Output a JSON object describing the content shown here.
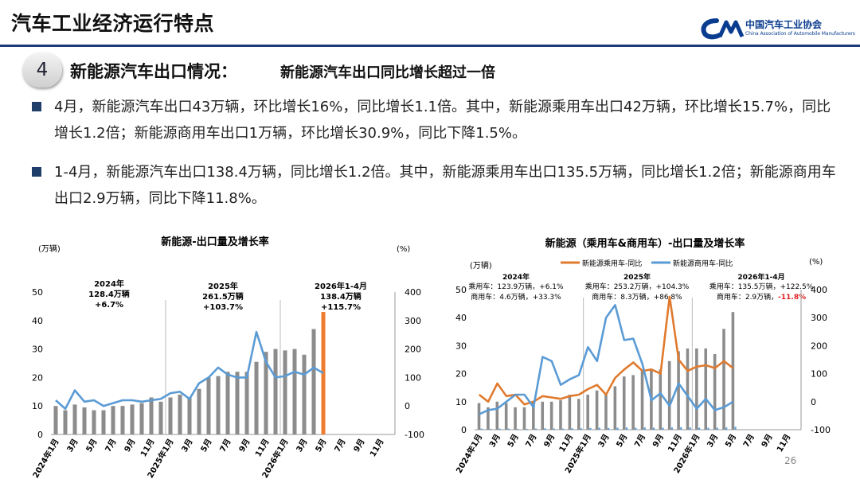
{
  "page": {
    "title": "汽车工业经济运行特点",
    "logo_cn": "中国汽车工业协会",
    "logo_en": "China Association of Automobile Manufacturers",
    "section_number": "4",
    "section_title": "新能源汽车出口情况：",
    "section_subtitle": "新能源汽车出口同比增长超过一倍",
    "para1": "4月，新能源汽车出口43万辆，环比增长16%，同比增长1.1倍。其中，新能源乘用车出口42万辆，环比增长15.7%，同比增长1.2倍；新能源商用车出口1万辆，环比增长30.9%，同比下降1.5%。",
    "para2": "1-4月，新能源汽车出口138.4万辆，同比增长1.2倍。其中，新能源乘用车出口135.5万辆，同比增长1.2倍；新能源商用车出口2.9万辆，同比下降11.8%。",
    "page_number": "26",
    "colors": {
      "header_line": "#1c3a78",
      "bar_gray": "#8c8c8c",
      "bar_highlight": "#ee7d31",
      "line_blue": "#5b9bd5",
      "line_orange": "#e07a2e",
      "negative_red": "#e02020"
    }
  },
  "chart_data": [
    {
      "type": "bar",
      "title": "新能源-出口量及增长率",
      "ylabel_left": "(万辆)",
      "ylabel_right": "(%)",
      "x_tick_labels": [
        "2024年1月",
        "3月",
        "5月",
        "7月",
        "9月",
        "11月",
        "2025年1月",
        "3月",
        "5月",
        "7月",
        "9月",
        "11月",
        "2026年1月",
        "3月",
        "5月",
        "7月",
        "9月",
        "11月"
      ],
      "ylim_left": [
        0,
        50
      ],
      "yticks_left": [
        0,
        10,
        20,
        30,
        40,
        50
      ],
      "ylim_right": [
        -100,
        400
      ],
      "yticks_right": [
        -100,
        0,
        100,
        200,
        300,
        400
      ],
      "annotations": [
        {
          "period": "2024年",
          "text1": "128.4万辆",
          "text2": "+6.7%"
        },
        {
          "period": "2025年",
          "text1": "261.5万辆",
          "text2": "+103.7%"
        },
        {
          "period": "2026年1-4月",
          "text1": "138.4万辆",
          "text2": "+115.7%"
        }
      ],
      "series": [
        {
          "kind": "bar",
          "values": [
            10,
            8.5,
            10.5,
            9.5,
            8.5,
            8.5,
            10,
            10,
            10.5,
            11,
            13,
            11.5,
            13,
            14,
            13,
            16,
            20,
            20.5,
            22,
            22,
            22,
            25.5,
            29,
            30,
            29.5,
            30,
            28,
            37,
            43
          ]
        },
        {
          "kind": "line",
          "values": [
            20,
            -10,
            55,
            15,
            20,
            0,
            10,
            20,
            20,
            15,
            20,
            25,
            45,
            50,
            25,
            80,
            100,
            135,
            110,
            100,
            100,
            260,
            155,
            100,
            105,
            120,
            110,
            135,
            115
          ]
        }
      ],
      "highlight_index": 28
    },
    {
      "type": "bar",
      "title": "新能源（乘用车&商用车）-出口量及增长率",
      "ylabel_left": "(万辆)",
      "ylabel_right": "(%)",
      "legend": [
        "新能源乘用车-同比",
        "新能源商用车-同比"
      ],
      "legend_position": "top",
      "x_tick_labels": [
        "2024年1月",
        "3月",
        "5月",
        "7月",
        "9月",
        "11月",
        "2025年1月",
        "3月",
        "5月",
        "7月",
        "9月",
        "11月",
        "2026年1月",
        "3月",
        "5月",
        "7月",
        "9月",
        "11月"
      ],
      "ylim_left": [
        0,
        50
      ],
      "yticks_left": [
        0,
        10,
        20,
        30,
        40,
        50
      ],
      "ylim_right": [
        -100,
        400
      ],
      "yticks_right": [
        -100,
        0,
        100,
        200,
        300,
        400
      ],
      "annotations": [
        {
          "period": "2024年",
          "line1": "乘用车：123.9万辆，+6.1%",
          "line2": "商用车：4.6万辆，+33.3%"
        },
        {
          "period": "2025年",
          "line1": "乘用车：253.2万辆，+104.3%",
          "line2": "商用车：8.3万辆，+86.8%"
        },
        {
          "period": "2026年1-4月",
          "line1": "乘用车：135.5万辆，+122.5%",
          "line2_prefix": "商用车：2.9万辆，",
          "line2_neg": "-11.8%"
        }
      ],
      "series": [
        {
          "kind": "bar",
          "name": "乘用车",
          "values": [
            9.5,
            8,
            10,
            9.5,
            8,
            8,
            10,
            10,
            10,
            10.5,
            12.5,
            11,
            12.5,
            14,
            12.5,
            15.5,
            19,
            19.5,
            21.5,
            21.5,
            21.5,
            24.5,
            28,
            29,
            29,
            29,
            27,
            36,
            42
          ]
        },
        {
          "kind": "bar",
          "name": "商用车",
          "values": [
            0.4,
            0.3,
            0.4,
            0.4,
            0.3,
            0.3,
            0.4,
            0.5,
            0.4,
            0.4,
            0.5,
            0.5,
            0.6,
            0.7,
            0.6,
            0.7,
            0.8,
            0.7,
            0.8,
            0.7,
            0.7,
            0.8,
            0.9,
            0.8,
            0.7,
            0.7,
            0.7,
            0.8,
            1.0
          ]
        },
        {
          "kind": "line",
          "name": "新能源乘用车-同比",
          "values": [
            25,
            0,
            65,
            20,
            25,
            -10,
            0,
            20,
            15,
            10,
            20,
            25,
            45,
            60,
            25,
            85,
            115,
            140,
            110,
            115,
            100,
            375,
            150,
            110,
            125,
            130,
            120,
            145,
            120
          ]
        },
        {
          "kind": "line",
          "name": "新能源商用车-同比",
          "values": [
            -45,
            -30,
            -25,
            0,
            25,
            25,
            -20,
            160,
            145,
            60,
            80,
            95,
            195,
            145,
            300,
            345,
            220,
            225,
            135,
            5,
            30,
            -15,
            65,
            20,
            -25,
            10,
            -30,
            -20,
            0
          ]
        }
      ]
    }
  ]
}
